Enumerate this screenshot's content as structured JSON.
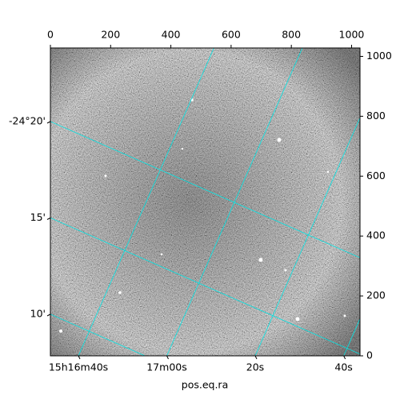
{
  "chart_data": {
    "type": "image",
    "xlabel": "pos.eq.ra",
    "xlim": [
      0,
      1028
    ],
    "ylim": [
      0,
      1028
    ],
    "xticks": [
      0,
      200,
      400,
      600,
      800,
      1000
    ],
    "yticks": [
      0,
      200,
      400,
      600,
      800,
      1000
    ],
    "ra_ticks": [
      {
        "value": 229.1667,
        "label": "15h16m40s"
      },
      {
        "value": 229.25,
        "label": "17m00s"
      },
      {
        "value": 229.3333,
        "label": "20s"
      },
      {
        "value": 229.4167,
        "label": "40s"
      }
    ],
    "dec_ticks": [
      {
        "value": -24.3333,
        "label": "-24°20'"
      },
      {
        "value": -24.25,
        "label": "15'"
      },
      {
        "value": -24.1667,
        "label": "10'"
      }
    ],
    "grid": true,
    "grid_color": "#00e5e5"
  }
}
